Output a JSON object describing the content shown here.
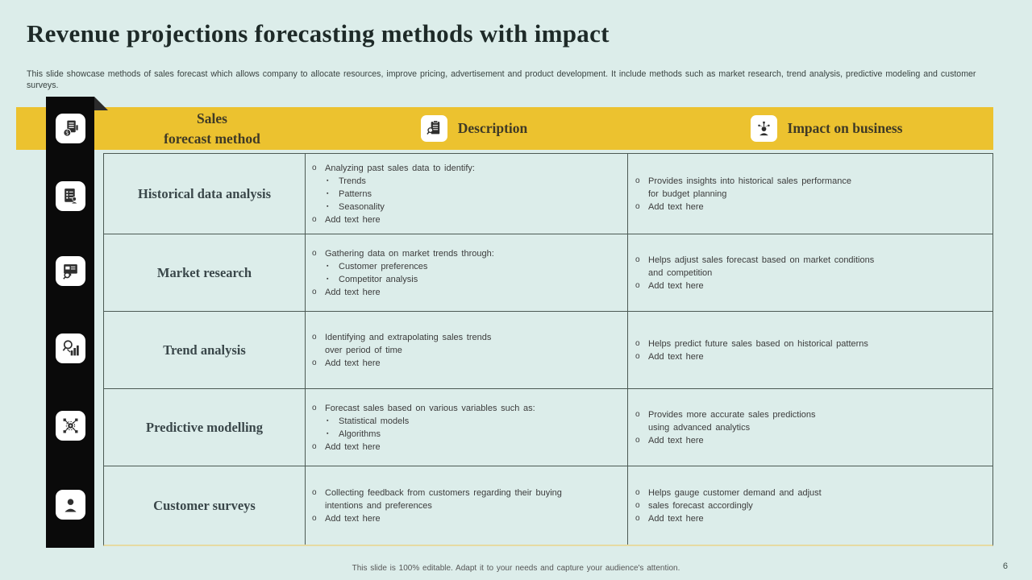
{
  "slide": {
    "title": "Revenue projections forecasting methods with impact",
    "subtitle": "This slide showcase methods of sales forecast which allows company to allocate resources, improve pricing, advertisement and product development. It include methods such as market research, trend analysis, predictive modeling and customer surveys.",
    "footer_note": "This slide is 100% editable. Adapt it to your needs and capture your audience's attention.",
    "page_number": "6"
  },
  "colors": {
    "background": "#dcedea",
    "header_yellow": "#ecc22f",
    "sidebar_black": "#0a0a0a",
    "fold_corner": "#2b2b2b",
    "table_border": "#4c5a54",
    "table_bottom_line": "#e6dba2",
    "title_text": "#1e2a28",
    "header_text": "#3f3a26",
    "method_text": "#3a474a",
    "body_text": "#3c3c3c",
    "footer_text": "#575757"
  },
  "bullet_markers": {
    "level1": "o",
    "level2": "▪"
  },
  "header": {
    "method": {
      "label": "Sales\nforecast method",
      "icon": "sales-report-icon"
    },
    "description": {
      "label": "Description",
      "icon": "clipboard-search-icon"
    },
    "impact": {
      "label": "Impact on business",
      "icon": "impact-person-icon"
    }
  },
  "sidebar_icons": [
    "sales-report-icon",
    "checklist-person-icon",
    "presentation-search-icon",
    "search-chart-icon",
    "gear-network-icon",
    "person-icon"
  ],
  "rows": [
    {
      "method": "Historical data analysis",
      "description": [
        {
          "level": 1,
          "text": "Analyzing past sales data to identify:"
        },
        {
          "level": 2,
          "text": "Trends"
        },
        {
          "level": 2,
          "text": "Patterns"
        },
        {
          "level": 2,
          "text": "Seasonality"
        },
        {
          "level": 1,
          "text": "Add text here"
        }
      ],
      "impact": [
        {
          "level": 1,
          "text": "Provides insights into historical sales performance\nfor budget planning"
        },
        {
          "level": 1,
          "text": "Add text here"
        }
      ]
    },
    {
      "method": "Market research",
      "description": [
        {
          "level": 1,
          "text": "Gathering data on market trends through:"
        },
        {
          "level": 2,
          "text": "Customer preferences"
        },
        {
          "level": 2,
          "text": "Competitor analysis"
        },
        {
          "level": 1,
          "text": "Add text here"
        }
      ],
      "impact": [
        {
          "level": 1,
          "text": "Helps adjust sales forecast based on market conditions\nand competition"
        },
        {
          "level": 1,
          "text": "Add text here"
        }
      ]
    },
    {
      "method": "Trend analysis",
      "description": [
        {
          "level": 1,
          "text": "Identifying and extrapolating sales trends\nover period of time"
        },
        {
          "level": 1,
          "text": "Add text here"
        }
      ],
      "impact": [
        {
          "level": 1,
          "text": "Helps predict future sales based on historical patterns"
        },
        {
          "level": 1,
          "text": "Add text here"
        }
      ]
    },
    {
      "method": "Predictive modelling",
      "description": [
        {
          "level": 1,
          "text": "Forecast sales based on various variables such as:"
        },
        {
          "level": 2,
          "text": "Statistical models"
        },
        {
          "level": 2,
          "text": "Algorithms"
        },
        {
          "level": 1,
          "text": "Add text here"
        }
      ],
      "impact": [
        {
          "level": 1,
          "text": "Provides more accurate sales predictions\nusing advanced analytics"
        },
        {
          "level": 1,
          "text": "Add text here"
        }
      ]
    },
    {
      "method": "Customer surveys",
      "description": [
        {
          "level": 1,
          "text": "Collecting feedback from customers regarding their buying\nintentions and preferences"
        },
        {
          "level": 1,
          "text": "Add text here"
        }
      ],
      "impact": [
        {
          "level": 1,
          "text": "Helps gauge customer demand and adjust"
        },
        {
          "level": 1,
          "text": "sales forecast accordingly"
        },
        {
          "level": 1,
          "text": "Add text here"
        }
      ]
    }
  ]
}
